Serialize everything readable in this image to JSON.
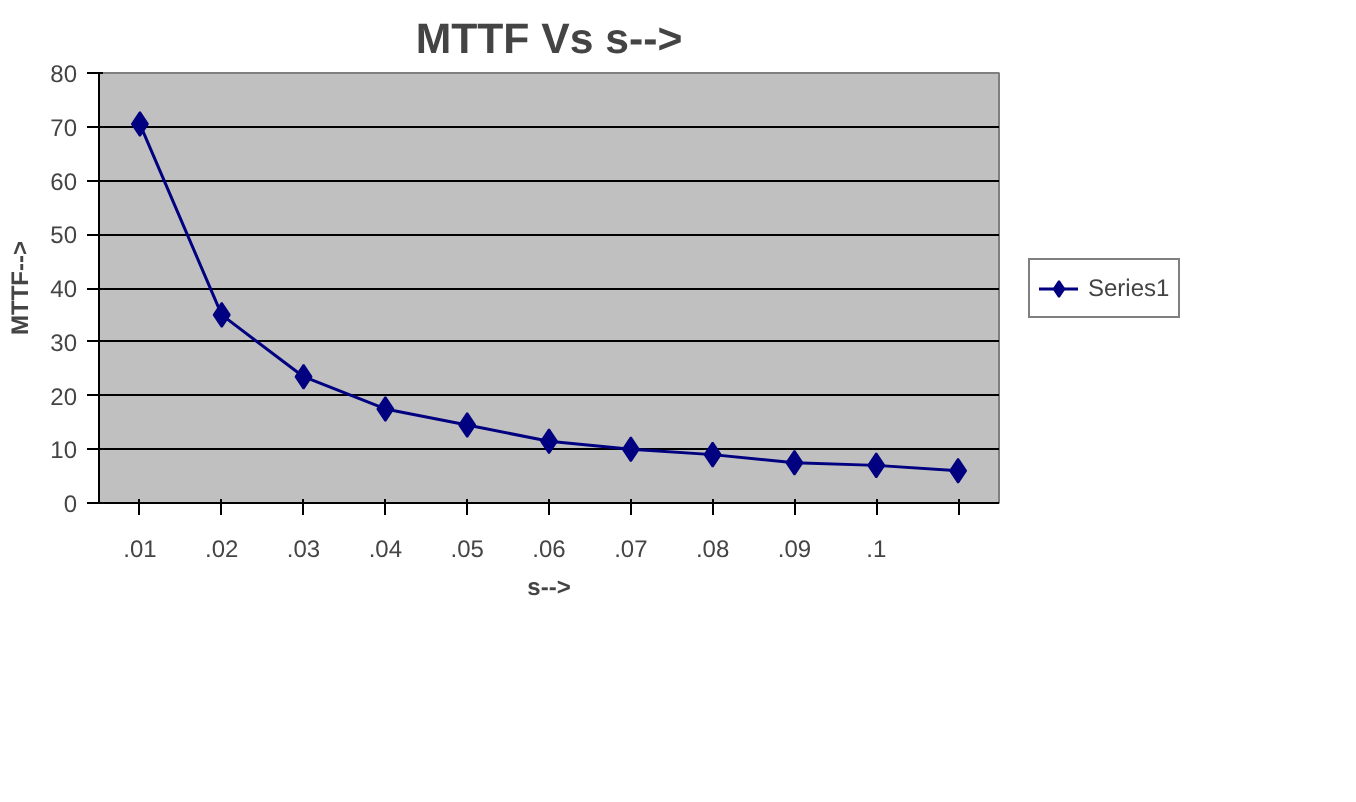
{
  "chart_data": {
    "type": "line",
    "title": "MTTF Vs s-->",
    "xlabel": "s-->",
    "ylabel": "MTTF-->",
    "categories": [
      ".01",
      ".02",
      ".03",
      ".04",
      ".05",
      ".06",
      ".07",
      ".08",
      ".09",
      ".1",
      null
    ],
    "series": [
      {
        "name": "Series1",
        "color": "#000080",
        "values": [
          70.5,
          35,
          23.5,
          17.5,
          14.5,
          11.5,
          10,
          9,
          7.5,
          7,
          6
        ]
      }
    ],
    "ylim": [
      0,
      80
    ],
    "yticks": [
      0,
      10,
      20,
      30,
      40,
      50,
      60,
      70,
      80
    ],
    "grid": "y",
    "legend": "right",
    "marker": "diamond",
    "line_style": "solid"
  }
}
